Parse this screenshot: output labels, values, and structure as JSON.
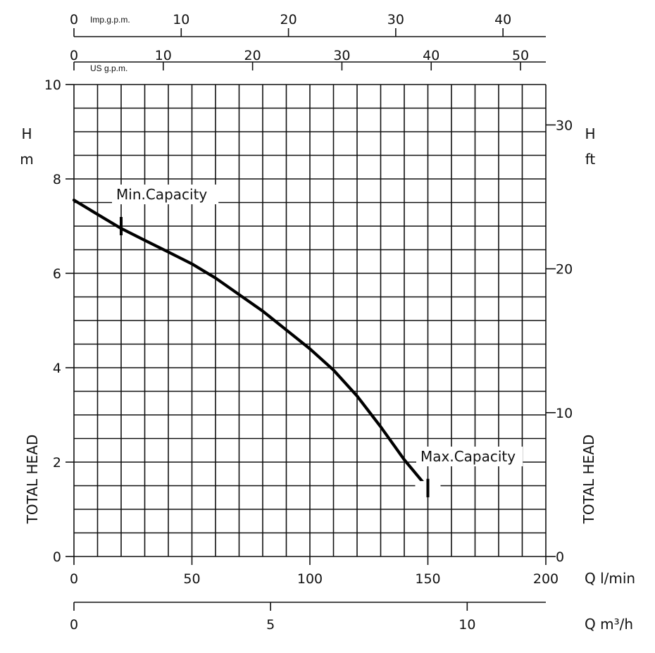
{
  "chart_data": {
    "type": "line",
    "title": "",
    "x": {
      "label": "Q l/min",
      "range": [
        0,
        200
      ],
      "ticks": [
        0,
        50,
        100,
        150,
        200
      ]
    },
    "y": {
      "label_symbol": "H",
      "label_unit": "m",
      "side_label": "TOTAL HEAD",
      "range": [
        0,
        10
      ],
      "ticks": [
        0,
        2,
        4,
        6,
        8,
        10
      ]
    },
    "y_ft": {
      "label_symbol": "H",
      "label_unit": "ft",
      "side_label": "TOTAL HEAD",
      "ticks": [
        0,
        10,
        20,
        30
      ]
    },
    "x_us_gpm": {
      "label": "US g.p.m.",
      "ticks": [
        0,
        10,
        20,
        30,
        40,
        50
      ]
    },
    "x_imp_gpm": {
      "label": "Imp.g.p.m.",
      "ticks": [
        0,
        10,
        20,
        30,
        40
      ]
    },
    "x_m3h": {
      "label": "Q m³/h",
      "ticks": [
        0,
        5,
        10
      ]
    },
    "series": [
      {
        "color": "#000000",
        "points": [
          [
            0,
            7.55
          ],
          [
            10,
            7.25
          ],
          [
            20,
            6.95
          ],
          [
            30,
            6.7
          ],
          [
            40,
            6.45
          ],
          [
            50,
            6.2
          ],
          [
            60,
            5.9
          ],
          [
            70,
            5.55
          ],
          [
            80,
            5.2
          ],
          [
            90,
            4.8
          ],
          [
            100,
            4.4
          ],
          [
            110,
            3.95
          ],
          [
            120,
            3.4
          ],
          [
            130,
            2.75
          ],
          [
            140,
            2.05
          ],
          [
            150,
            1.45
          ]
        ]
      }
    ],
    "annotations": [
      {
        "text": "Min.Capacity",
        "x": 20,
        "y": 7.0
      },
      {
        "text": "Max.Capacity",
        "x": 150,
        "y": 1.45
      }
    ],
    "grid": true
  }
}
